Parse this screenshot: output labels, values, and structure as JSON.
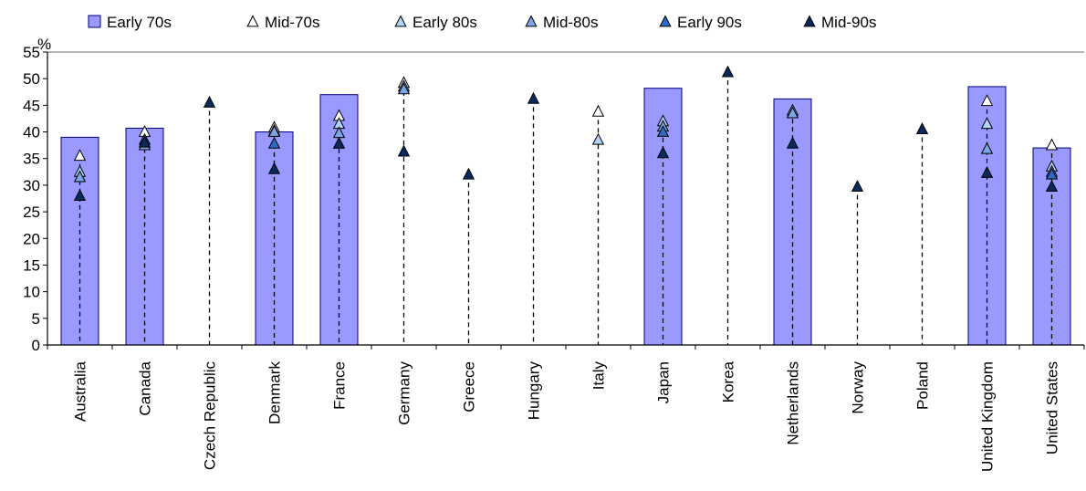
{
  "chart_data": {
    "type": "bar",
    "ylabel": "%",
    "ylim": [
      0,
      55
    ],
    "yticks": [
      0,
      5,
      10,
      15,
      20,
      25,
      30,
      35,
      40,
      45,
      50,
      55
    ],
    "categories": [
      "Australia",
      "Canada",
      "Czech Republic",
      "Denmark",
      "France",
      "Germany",
      "Greece",
      "Hungary",
      "Italy",
      "Japan",
      "Korea",
      "Netherlands",
      "Norway",
      "Poland",
      "United Kingdom",
      "United States"
    ],
    "legend_position": "top",
    "grid": false,
    "series": [
      {
        "name": "Early 70s",
        "kind": "bar",
        "color": "#9999ff",
        "values": [
          39,
          40.7,
          null,
          40,
          47,
          null,
          null,
          null,
          null,
          48.2,
          null,
          46.2,
          null,
          null,
          48.5,
          37
        ]
      },
      {
        "name": "Mid-70s",
        "kind": "marker",
        "color": "#ffffff",
        "values": [
          35.5,
          40,
          null,
          40.8,
          43,
          49.2,
          null,
          null,
          43.8,
          null,
          null,
          null,
          null,
          null,
          45.8,
          37.5
        ]
      },
      {
        "name": "Early 80s",
        "kind": "marker",
        "color": "#b3d4ff",
        "values": [
          32.5,
          null,
          null,
          40.2,
          41.5,
          48.5,
          null,
          null,
          38.5,
          42,
          null,
          44,
          null,
          null,
          41.5,
          33.5
        ]
      },
      {
        "name": "Mid-80s",
        "kind": "marker",
        "color": "#7aa6e6",
        "values": [
          31.5,
          37.5,
          null,
          40,
          39.8,
          48,
          null,
          null,
          null,
          41,
          null,
          43.5,
          null,
          null,
          36.8,
          32.5
        ]
      },
      {
        "name": "Early 90s",
        "kind": "marker",
        "color": "#2c6bc4",
        "values": [
          null,
          38.5,
          null,
          37.8,
          37.8,
          null,
          null,
          null,
          null,
          40,
          null,
          null,
          null,
          null,
          null,
          32
        ]
      },
      {
        "name": "Mid-90s",
        "kind": "marker",
        "color": "#0b2a5c",
        "values": [
          28,
          38,
          45.5,
          33,
          37.8,
          36.3,
          32,
          46.2,
          null,
          36,
          51.2,
          37.8,
          29.7,
          40.5,
          32.3,
          29.7
        ]
      }
    ]
  }
}
